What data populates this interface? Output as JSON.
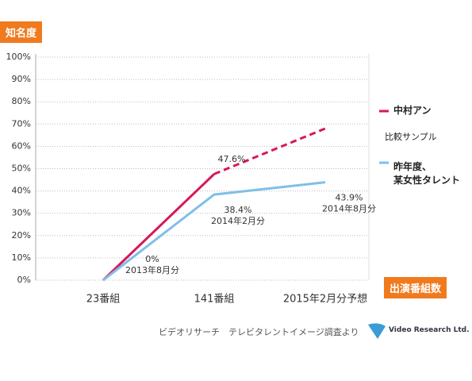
{
  "chart_data": {
    "type": "line",
    "y_label": "知名度",
    "x_label": "出演番組数",
    "categories": [
      "23番組",
      "141番組",
      "2015年2月分予想"
    ],
    "series": [
      {
        "name": "中村アン",
        "color": "#d6185a",
        "values": [
          0,
          47.6,
          68
        ],
        "value_labels": [
          null,
          "47.6%",
          null
        ],
        "dash_from": 1
      },
      {
        "name": "昨年度、\n某女性タレント",
        "color": "#7fbfe8",
        "values": [
          0,
          38.4,
          43.9
        ],
        "value_labels": [
          "0%",
          "38.4%",
          "43.9%"
        ],
        "point_notes": [
          "2013年8月分",
          "2014年2月分",
          "2014年8月分"
        ]
      }
    ],
    "legend_note": "比較サンプル",
    "ylim": [
      0,
      100
    ],
    "yticks": [
      {
        "value": 0,
        "label": "0%"
      },
      {
        "value": 10,
        "label": "10%"
      },
      {
        "value": 20,
        "label": "20%"
      },
      {
        "value": 30,
        "label": "30%"
      },
      {
        "value": 40,
        "label": "40%"
      },
      {
        "value": 50,
        "label": "50%"
      },
      {
        "value": 60,
        "label": "60%"
      },
      {
        "value": 70,
        "label": "70%"
      },
      {
        "value": 80,
        "label": "80%"
      },
      {
        "value": 90,
        "label": "90%"
      },
      {
        "value": 100,
        "label": "100%"
      }
    ],
    "grid": true,
    "source": "ビデオリサーチ　テレビタレントイメージ調査より",
    "logo": "Video Research Ltd."
  }
}
